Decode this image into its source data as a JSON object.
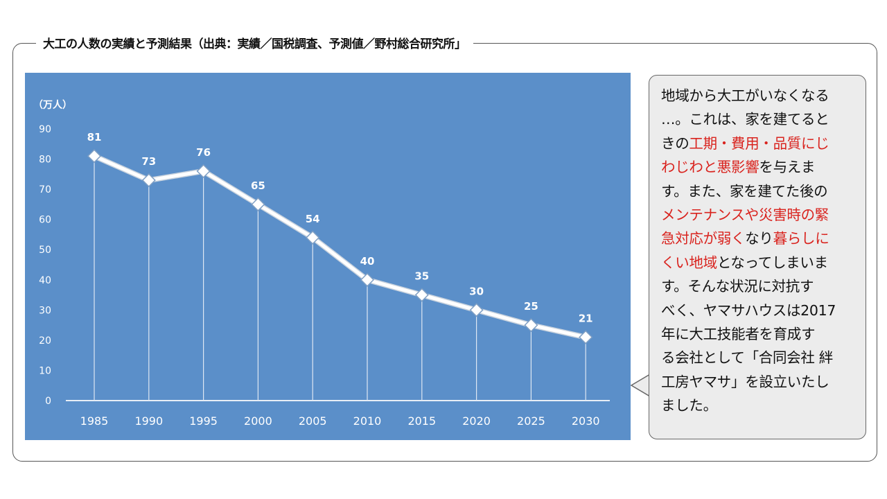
{
  "title": "大工の人数の実績と予測結果（出典：実績／国税調査、予測値／野村総合研究所」",
  "callout": {
    "lines": [
      [
        {
          "t": "地域から大工がいなくなる",
          "red": false
        }
      ],
      [
        {
          "t": "…。これは、家を建てると",
          "red": false
        }
      ],
      [
        {
          "t": "きの",
          "red": false
        },
        {
          "t": "工期・費用・品質にじ",
          "red": true
        }
      ],
      [
        {
          "t": "わじわと悪影響",
          "red": true
        },
        {
          "t": "を与えま",
          "red": false
        }
      ],
      [
        {
          "t": "す。また、家を建てた後の",
          "red": false
        }
      ],
      [
        {
          "t": "メンテナンスや災害時の緊",
          "red": true
        }
      ],
      [
        {
          "t": "急対応が弱く",
          "red": true
        },
        {
          "t": "なり",
          "red": false
        },
        {
          "t": "暮らしに",
          "red": true
        }
      ],
      [
        {
          "t": "くい地域",
          "red": true
        },
        {
          "t": "となってしまいま",
          "red": false
        }
      ],
      [
        {
          "t": "す。そんな状況に対抗す",
          "red": false
        }
      ],
      [
        {
          "t": "べく、ヤマサハウスは2017",
          "red": false
        }
      ],
      [
        {
          "t": "年に大工技能者を育成す",
          "red": false
        }
      ],
      [
        {
          "t": "る会社として「合同会社 絆",
          "red": false
        }
      ],
      [
        {
          "t": "工房ヤマサ」を設立いたし",
          "red": false
        }
      ],
      [
        {
          "t": "ました。",
          "red": false
        }
      ]
    ]
  },
  "chart_data": {
    "type": "line",
    "ylabel": "（万人）",
    "categories": [
      "1985",
      "1990",
      "1995",
      "2000",
      "2005",
      "2010",
      "2015",
      "2020",
      "2025",
      "2030"
    ],
    "values": [
      81,
      73,
      76,
      65,
      54,
      40,
      35,
      30,
      25,
      21
    ],
    "ylim": [
      0,
      90
    ],
    "yticks": [
      "0",
      "10",
      "20",
      "30",
      "40",
      "50",
      "60",
      "70",
      "80",
      "90"
    ],
    "background": "#5b8fc9",
    "line_color": "#ffffff"
  }
}
